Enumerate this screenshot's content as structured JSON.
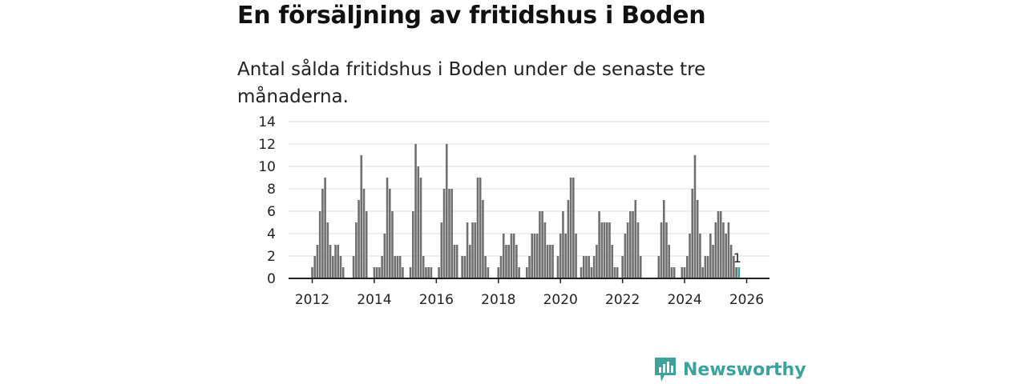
{
  "chart_data": {
    "type": "bar",
    "title": "En försäljning av fritidshus i Boden",
    "subtitle": "Antal sålda fritidshus i Boden under de senaste tre månaderna.",
    "xlabel": "",
    "ylabel": "",
    "ylim": [
      0,
      14
    ],
    "yticks": [
      "0",
      "2",
      "4",
      "6",
      "8",
      "10",
      "12",
      "14"
    ],
    "xticks": [
      "2012",
      "2014",
      "2016",
      "2018",
      "2020",
      "2022",
      "2024",
      "2026"
    ],
    "x_start": "2011-01",
    "x_end": "2026-12",
    "grid": true,
    "bar_color": "#707070",
    "highlight_color": "#3aa39c",
    "series": [
      {
        "name": "Antal sålda fritidshus",
        "values": [
          {
            "d": "2012-01",
            "v": 1
          },
          {
            "d": "2012-02",
            "v": 2
          },
          {
            "d": "2012-03",
            "v": 3
          },
          {
            "d": "2012-04",
            "v": 6
          },
          {
            "d": "2012-05",
            "v": 8
          },
          {
            "d": "2012-06",
            "v": 9
          },
          {
            "d": "2012-07",
            "v": 5
          },
          {
            "d": "2012-08",
            "v": 3
          },
          {
            "d": "2012-09",
            "v": 2
          },
          {
            "d": "2012-10",
            "v": 3
          },
          {
            "d": "2012-11",
            "v": 3
          },
          {
            "d": "2012-12",
            "v": 2
          },
          {
            "d": "2013-01",
            "v": 1
          },
          {
            "d": "2013-05",
            "v": 2
          },
          {
            "d": "2013-06",
            "v": 5
          },
          {
            "d": "2013-07",
            "v": 7
          },
          {
            "d": "2013-08",
            "v": 11
          },
          {
            "d": "2013-09",
            "v": 8
          },
          {
            "d": "2013-10",
            "v": 6
          },
          {
            "d": "2014-01",
            "v": 1
          },
          {
            "d": "2014-02",
            "v": 1
          },
          {
            "d": "2014-03",
            "v": 1
          },
          {
            "d": "2014-04",
            "v": 2
          },
          {
            "d": "2014-05",
            "v": 4
          },
          {
            "d": "2014-06",
            "v": 9
          },
          {
            "d": "2014-07",
            "v": 8
          },
          {
            "d": "2014-08",
            "v": 6
          },
          {
            "d": "2014-09",
            "v": 2
          },
          {
            "d": "2014-10",
            "v": 2
          },
          {
            "d": "2014-11",
            "v": 2
          },
          {
            "d": "2014-12",
            "v": 1
          },
          {
            "d": "2015-03",
            "v": 1
          },
          {
            "d": "2015-04",
            "v": 6
          },
          {
            "d": "2015-05",
            "v": 12
          },
          {
            "d": "2015-06",
            "v": 10
          },
          {
            "d": "2015-07",
            "v": 9
          },
          {
            "d": "2015-08",
            "v": 2
          },
          {
            "d": "2015-09",
            "v": 1
          },
          {
            "d": "2015-10",
            "v": 1
          },
          {
            "d": "2015-11",
            "v": 1
          },
          {
            "d": "2016-02",
            "v": 1
          },
          {
            "d": "2016-03",
            "v": 5
          },
          {
            "d": "2016-04",
            "v": 8
          },
          {
            "d": "2016-05",
            "v": 12
          },
          {
            "d": "2016-06",
            "v": 8
          },
          {
            "d": "2016-07",
            "v": 8
          },
          {
            "d": "2016-08",
            "v": 3
          },
          {
            "d": "2016-09",
            "v": 3
          },
          {
            "d": "2016-11",
            "v": 2
          },
          {
            "d": "2016-12",
            "v": 2
          },
          {
            "d": "2017-01",
            "v": 5
          },
          {
            "d": "2017-02",
            "v": 3
          },
          {
            "d": "2017-03",
            "v": 5
          },
          {
            "d": "2017-04",
            "v": 5
          },
          {
            "d": "2017-05",
            "v": 9
          },
          {
            "d": "2017-06",
            "v": 9
          },
          {
            "d": "2017-07",
            "v": 7
          },
          {
            "d": "2017-08",
            "v": 2
          },
          {
            "d": "2017-09",
            "v": 1
          },
          {
            "d": "2018-01",
            "v": 1
          },
          {
            "d": "2018-02",
            "v": 2
          },
          {
            "d": "2018-03",
            "v": 4
          },
          {
            "d": "2018-04",
            "v": 3
          },
          {
            "d": "2018-05",
            "v": 3
          },
          {
            "d": "2018-06",
            "v": 4
          },
          {
            "d": "2018-07",
            "v": 4
          },
          {
            "d": "2018-08",
            "v": 3
          },
          {
            "d": "2018-09",
            "v": 1
          },
          {
            "d": "2018-12",
            "v": 1
          },
          {
            "d": "2019-01",
            "v": 2
          },
          {
            "d": "2019-02",
            "v": 4
          },
          {
            "d": "2019-03",
            "v": 4
          },
          {
            "d": "2019-04",
            "v": 4
          },
          {
            "d": "2019-05",
            "v": 6
          },
          {
            "d": "2019-06",
            "v": 6
          },
          {
            "d": "2019-07",
            "v": 5
          },
          {
            "d": "2019-08",
            "v": 3
          },
          {
            "d": "2019-09",
            "v": 3
          },
          {
            "d": "2019-10",
            "v": 3
          },
          {
            "d": "2019-12",
            "v": 2
          },
          {
            "d": "2020-01",
            "v": 4
          },
          {
            "d": "2020-02",
            "v": 6
          },
          {
            "d": "2020-03",
            "v": 4
          },
          {
            "d": "2020-04",
            "v": 7
          },
          {
            "d": "2020-05",
            "v": 9
          },
          {
            "d": "2020-06",
            "v": 9
          },
          {
            "d": "2020-07",
            "v": 4
          },
          {
            "d": "2020-09",
            "v": 1
          },
          {
            "d": "2020-10",
            "v": 2
          },
          {
            "d": "2020-11",
            "v": 2
          },
          {
            "d": "2020-12",
            "v": 2
          },
          {
            "d": "2021-01",
            "v": 1
          },
          {
            "d": "2021-02",
            "v": 2
          },
          {
            "d": "2021-03",
            "v": 3
          },
          {
            "d": "2021-04",
            "v": 6
          },
          {
            "d": "2021-05",
            "v": 5
          },
          {
            "d": "2021-06",
            "v": 5
          },
          {
            "d": "2021-07",
            "v": 5
          },
          {
            "d": "2021-08",
            "v": 5
          },
          {
            "d": "2021-09",
            "v": 3
          },
          {
            "d": "2021-10",
            "v": 1
          },
          {
            "d": "2021-11",
            "v": 1
          },
          {
            "d": "2022-01",
            "v": 2
          },
          {
            "d": "2022-02",
            "v": 4
          },
          {
            "d": "2022-03",
            "v": 5
          },
          {
            "d": "2022-04",
            "v": 6
          },
          {
            "d": "2022-05",
            "v": 6
          },
          {
            "d": "2022-06",
            "v": 7
          },
          {
            "d": "2022-07",
            "v": 5
          },
          {
            "d": "2022-08",
            "v": 2
          },
          {
            "d": "2023-03",
            "v": 2
          },
          {
            "d": "2023-04",
            "v": 5
          },
          {
            "d": "2023-05",
            "v": 7
          },
          {
            "d": "2023-06",
            "v": 5
          },
          {
            "d": "2023-07",
            "v": 3
          },
          {
            "d": "2023-08",
            "v": 1
          },
          {
            "d": "2023-09",
            "v": 1
          },
          {
            "d": "2023-12",
            "v": 1
          },
          {
            "d": "2024-01",
            "v": 1
          },
          {
            "d": "2024-02",
            "v": 2
          },
          {
            "d": "2024-03",
            "v": 4
          },
          {
            "d": "2024-04",
            "v": 8
          },
          {
            "d": "2024-05",
            "v": 11
          },
          {
            "d": "2024-06",
            "v": 7
          },
          {
            "d": "2024-07",
            "v": 4
          },
          {
            "d": "2024-08",
            "v": 1
          },
          {
            "d": "2024-09",
            "v": 2
          },
          {
            "d": "2024-10",
            "v": 2
          },
          {
            "d": "2024-11",
            "v": 4
          },
          {
            "d": "2024-12",
            "v": 3
          },
          {
            "d": "2025-01",
            "v": 5
          },
          {
            "d": "2025-02",
            "v": 6
          },
          {
            "d": "2025-03",
            "v": 6
          },
          {
            "d": "2025-04",
            "v": 5
          },
          {
            "d": "2025-05",
            "v": 4
          },
          {
            "d": "2025-06",
            "v": 5
          },
          {
            "d": "2025-07",
            "v": 3
          },
          {
            "d": "2025-08",
            "v": 2
          },
          {
            "d": "2025-09",
            "v": 1
          }
        ]
      }
    ],
    "highlight": {
      "d": "2025-10",
      "v": 1,
      "label": "1"
    }
  },
  "brand": {
    "name": "Newsworthy",
    "icon": "newsworthy-logo-icon",
    "color": "#3aa39c"
  }
}
